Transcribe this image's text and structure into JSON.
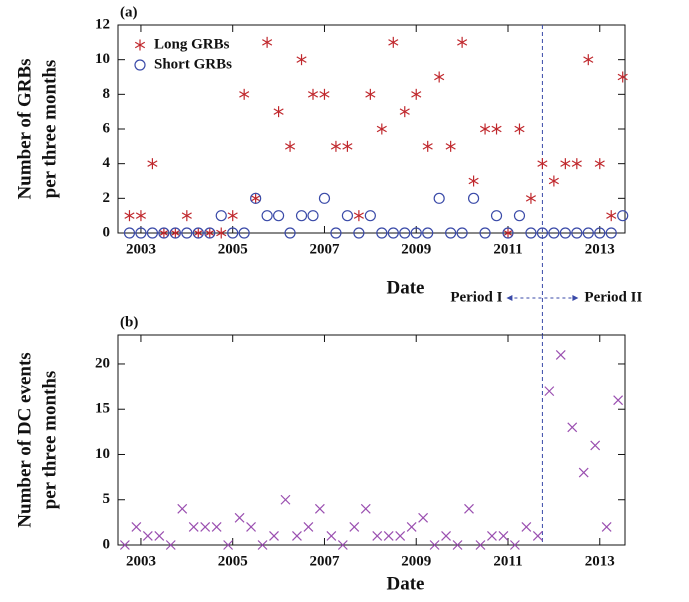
{
  "chart_data": [
    {
      "type": "scatter",
      "panel_label": "(a)",
      "ylabel": [
        "Number of GRBs",
        "per three months"
      ],
      "xlabel": "Date",
      "x": [
        2002.75,
        2003,
        2003.25,
        2003.5,
        2003.75,
        2004,
        2004.25,
        2004.5,
        2004.75,
        2005,
        2005.25,
        2005.5,
        2005.75,
        2006,
        2006.25,
        2006.5,
        2006.75,
        2007,
        2007.25,
        2007.5,
        2007.75,
        2008,
        2008.25,
        2008.5,
        2008.75,
        2009,
        2009.25,
        2009.5,
        2009.75,
        2010,
        2010.25,
        2010.5,
        2010.75,
        2011,
        2011.25,
        2011.5,
        2011.75,
        2012,
        2012.25,
        2012.5,
        2012.75,
        2013,
        2013.25,
        2013.5
      ],
      "series": [
        {
          "name": "Long GRBs",
          "color": "#c0282d",
          "marker": "asterisk",
          "values": [
            1,
            1,
            4,
            0,
            0,
            1,
            0,
            0,
            0,
            1,
            8,
            2,
            11,
            7,
            5,
            10,
            8,
            8,
            5,
            5,
            1,
            8,
            6,
            11,
            7,
            8,
            5,
            9,
            5,
            11,
            3,
            6,
            6,
            0,
            6,
            2,
            4,
            3,
            4,
            4,
            10,
            4,
            1,
            9
          ]
        },
        {
          "name": "Short GRBs",
          "color": "#3a4aa8",
          "marker": "circle",
          "values": [
            0,
            0,
            0,
            0,
            0,
            0,
            0,
            0,
            1,
            0,
            0,
            2,
            1,
            1,
            0,
            1,
            1,
            2,
            0,
            1,
            0,
            1,
            0,
            0,
            0,
            0,
            0,
            2,
            0,
            0,
            2,
            0,
            1,
            0,
            1,
            0,
            0,
            0,
            0,
            0,
            0,
            0,
            0,
            1
          ]
        }
      ],
      "xlim": [
        2002.5,
        2013.55
      ],
      "ylim": [
        0,
        12
      ],
      "xticks": [
        2003,
        2005,
        2007,
        2009,
        2011,
        2013
      ],
      "yticks": [
        0,
        2,
        4,
        6,
        8,
        10,
        12
      ],
      "boundary": 2011.75,
      "annotations": [
        "Period I",
        "Period II"
      ],
      "legend": "upper left"
    },
    {
      "type": "scatter",
      "panel_label": "(b)",
      "ylabel": [
        "Number of  DC events",
        "per three months"
      ],
      "xlabel": "Date",
      "x": [
        2002.65,
        2002.9,
        2003.15,
        2003.4,
        2003.65,
        2003.9,
        2004.15,
        2004.4,
        2004.65,
        2004.9,
        2005.15,
        2005.4,
        2005.65,
        2005.9,
        2006.15,
        2006.4,
        2006.65,
        2006.9,
        2007.15,
        2007.4,
        2007.65,
        2007.9,
        2008.15,
        2008.4,
        2008.65,
        2008.9,
        2009.15,
        2009.4,
        2009.65,
        2009.9,
        2010.15,
        2010.4,
        2010.65,
        2010.9,
        2011.15,
        2011.4,
        2011.65,
        2011.9,
        2012.15,
        2012.4,
        2012.65,
        2012.9,
        2013.15,
        2013.4
      ],
      "series": [
        {
          "color": "#9a4fb0",
          "marker": "x",
          "values": [
            0,
            2,
            1,
            1,
            0,
            4,
            2,
            2,
            2,
            0,
            3,
            2,
            0,
            1,
            5,
            1,
            2,
            4,
            1,
            0,
            2,
            4,
            1,
            1,
            1,
            2,
            3,
            0,
            1,
            0,
            4,
            0,
            1,
            1,
            0,
            2,
            1,
            17,
            21,
            13,
            8,
            11,
            2,
            16
          ]
        }
      ],
      "xlim": [
        2002.5,
        2013.55
      ],
      "ylim": [
        0,
        23.2
      ],
      "xticks": [
        2003,
        2005,
        2007,
        2009,
        2011,
        2013
      ],
      "yticks": [
        0,
        5,
        10,
        15,
        20
      ],
      "boundary": 2011.75
    }
  ]
}
